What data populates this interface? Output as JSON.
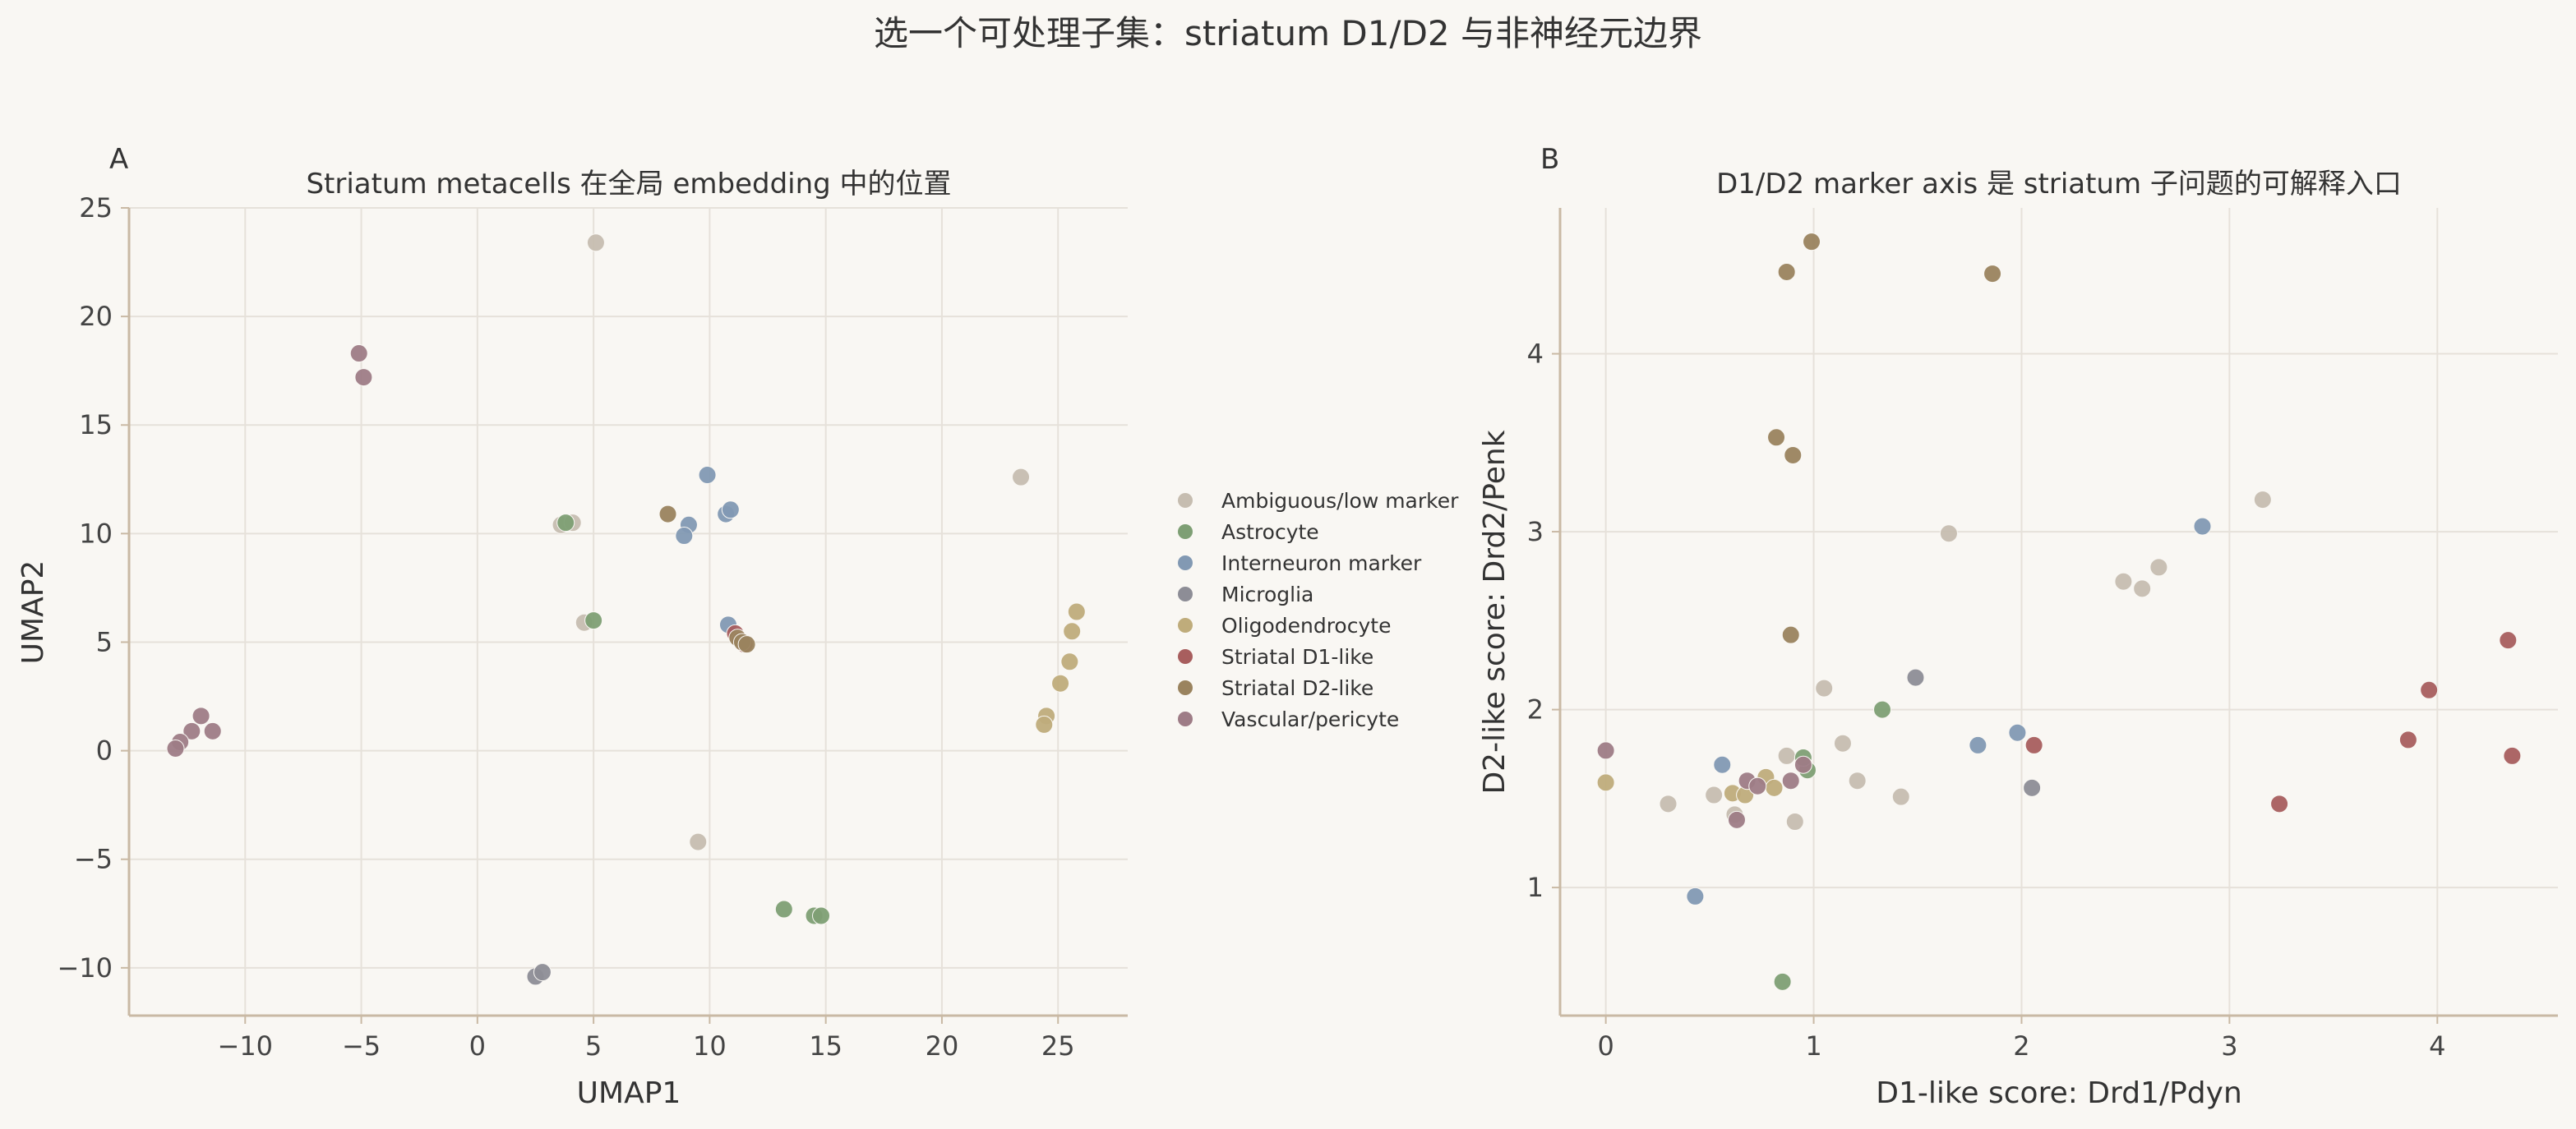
{
  "figure": {
    "suptitle": "选一个可处理子集：striatum D1/D2 与非神经元边界",
    "background": "#f9f7f3"
  },
  "legend": {
    "placement": "between-panels",
    "entries": [
      {
        "label": "Ambiguous/low marker",
        "color": "#c6bdb0"
      },
      {
        "label": "Astrocyte",
        "color": "#7e9f74"
      },
      {
        "label": "Interneuron marker",
        "color": "#8299b3"
      },
      {
        "label": "Microglia",
        "color": "#8d8d96"
      },
      {
        "label": "Oligodendrocyte",
        "color": "#bfac7b"
      },
      {
        "label": "Striatal D1-like",
        "color": "#a85e5e"
      },
      {
        "label": "Striatal D2-like",
        "color": "#9a835e"
      },
      {
        "label": "Vascular/pericyte",
        "color": "#9e7c86"
      }
    ]
  },
  "chart_data": [
    {
      "panel": "A",
      "type": "scatter",
      "title": "Striatum metacells 在全局 embedding 中的位置",
      "xlabel": "UMAP1",
      "ylabel": "UMAP2",
      "xlim": [
        -15,
        28
      ],
      "ylim": [
        -12.2,
        25
      ],
      "xticks": [
        -10,
        -5,
        0,
        5,
        10,
        15,
        20,
        25
      ],
      "yticks": [
        -10,
        -5,
        0,
        5,
        10,
        15,
        20,
        25
      ],
      "xtick_labels": [
        "−10",
        "−5",
        "0",
        "5",
        "10",
        "15",
        "20",
        "25"
      ],
      "ytick_labels": [
        "−10",
        "−5",
        "0",
        "5",
        "10",
        "15",
        "20",
        "25"
      ],
      "grid": true,
      "series": [
        {
          "name": "Ambiguous/low marker",
          "color": "#c6bdb0",
          "points": [
            [
              5.1,
              23.4
            ],
            [
              23.4,
              12.6
            ],
            [
              3.6,
              10.4
            ],
            [
              4.1,
              10.5
            ],
            [
              4.6,
              5.9
            ],
            [
              9.5,
              -4.2
            ]
          ]
        },
        {
          "name": "Astrocyte",
          "color": "#7e9f74",
          "points": [
            [
              3.8,
              10.5
            ],
            [
              5.0,
              6.0
            ],
            [
              13.2,
              -7.3
            ],
            [
              14.5,
              -7.6
            ],
            [
              14.8,
              -7.6
            ]
          ]
        },
        {
          "name": "Interneuron marker",
          "color": "#8299b3",
          "points": [
            [
              9.9,
              12.7
            ],
            [
              10.7,
              10.9
            ],
            [
              10.9,
              11.1
            ],
            [
              9.1,
              10.4
            ],
            [
              8.9,
              9.9
            ],
            [
              10.8,
              5.8
            ]
          ]
        },
        {
          "name": "Microglia",
          "color": "#8d8d96",
          "points": [
            [
              2.5,
              -10.4
            ],
            [
              2.8,
              -10.2
            ]
          ]
        },
        {
          "name": "Oligodendrocyte",
          "color": "#bfac7b",
          "points": [
            [
              25.8,
              6.4
            ],
            [
              25.6,
              5.5
            ],
            [
              25.5,
              4.1
            ],
            [
              25.1,
              3.1
            ],
            [
              24.5,
              1.6
            ],
            [
              24.4,
              1.2
            ]
          ]
        },
        {
          "name": "Striatal D1-like",
          "color": "#a85e5e",
          "points": [
            [
              11.1,
              5.4
            ],
            [
              11.3,
              5.1
            ],
            [
              11.5,
              4.9
            ]
          ]
        },
        {
          "name": "Striatal D2-like",
          "color": "#9a835e",
          "points": [
            [
              8.2,
              10.9
            ],
            [
              11.2,
              5.2
            ],
            [
              11.4,
              5.0
            ],
            [
              11.6,
              4.9
            ]
          ]
        },
        {
          "name": "Vascular/pericyte",
          "color": "#9e7c86",
          "points": [
            [
              -5.1,
              18.3
            ],
            [
              -4.9,
              17.2
            ],
            [
              -11.9,
              1.6
            ],
            [
              -11.4,
              0.9
            ],
            [
              -12.3,
              0.9
            ],
            [
              -12.8,
              0.4
            ],
            [
              -13.0,
              0.1
            ]
          ]
        }
      ]
    },
    {
      "panel": "B",
      "type": "scatter",
      "title": "D1/D2 marker axis 是 striatum 子问题的可解释入口",
      "xlabel": "D1-like score: Drd1/Pdyn",
      "ylabel": "D2-like score: Drd2/Penk",
      "xlim": [
        -0.22,
        4.58
      ],
      "ylim": [
        0.28,
        4.82
      ],
      "xticks": [
        0,
        1,
        2,
        3,
        4
      ],
      "yticks": [
        1,
        2,
        3,
        4
      ],
      "xtick_labels": [
        "0",
        "1",
        "2",
        "3",
        "4"
      ],
      "ytick_labels": [
        "1",
        "2",
        "3",
        "4"
      ],
      "grid": true,
      "series": [
        {
          "name": "Ambiguous/low marker",
          "color": "#c6bdb0",
          "points": [
            [
              1.65,
              2.99
            ],
            [
              3.16,
              3.18
            ],
            [
              2.49,
              2.72
            ],
            [
              2.58,
              2.68
            ],
            [
              2.66,
              2.8
            ],
            [
              1.05,
              2.12
            ],
            [
              1.14,
              1.81
            ],
            [
              1.21,
              1.6
            ],
            [
              1.42,
              1.51
            ],
            [
              0.3,
              1.47
            ],
            [
              0.52,
              1.52
            ],
            [
              0.62,
              1.41
            ],
            [
              0.87,
              1.74
            ],
            [
              0.91,
              1.37
            ]
          ]
        },
        {
          "name": "Astrocyte",
          "color": "#7e9f74",
          "points": [
            [
              1.33,
              2.0
            ],
            [
              0.97,
              1.66
            ],
            [
              0.95,
              1.73
            ],
            [
              0.85,
              0.47
            ]
          ]
        },
        {
          "name": "Interneuron marker",
          "color": "#8299b3",
          "points": [
            [
              2.87,
              3.03
            ],
            [
              1.98,
              1.87
            ],
            [
              1.79,
              1.8
            ],
            [
              0.56,
              1.69
            ],
            [
              0.43,
              0.95
            ]
          ]
        },
        {
          "name": "Microglia",
          "color": "#8d8d96",
          "points": [
            [
              1.49,
              2.18
            ],
            [
              2.05,
              1.56
            ]
          ]
        },
        {
          "name": "Oligodendrocyte",
          "color": "#bfac7b",
          "points": [
            [
              0.0,
              1.59
            ],
            [
              0.61,
              1.53
            ],
            [
              0.67,
              1.52
            ],
            [
              0.77,
              1.62
            ],
            [
              0.81,
              1.56
            ]
          ]
        },
        {
          "name": "Striatal D1-like",
          "color": "#a85e5e",
          "points": [
            [
              4.34,
              2.39
            ],
            [
              3.96,
              2.11
            ],
            [
              3.86,
              1.83
            ],
            [
              4.36,
              1.74
            ],
            [
              3.24,
              1.47
            ],
            [
              2.06,
              1.8
            ]
          ]
        },
        {
          "name": "Striatal D2-like",
          "color": "#9a835e",
          "points": [
            [
              0.99,
              4.63
            ],
            [
              0.87,
              4.46
            ],
            [
              1.86,
              4.45
            ],
            [
              0.82,
              3.53
            ],
            [
              0.9,
              3.43
            ],
            [
              0.89,
              2.42
            ]
          ]
        },
        {
          "name": "Vascular/pericyte",
          "color": "#9e7c86",
          "points": [
            [
              0.0,
              1.77
            ],
            [
              0.95,
              1.69
            ],
            [
              0.68,
              1.6
            ],
            [
              0.73,
              1.57
            ],
            [
              0.89,
              1.6
            ],
            [
              0.63,
              1.38
            ]
          ]
        }
      ]
    }
  ]
}
